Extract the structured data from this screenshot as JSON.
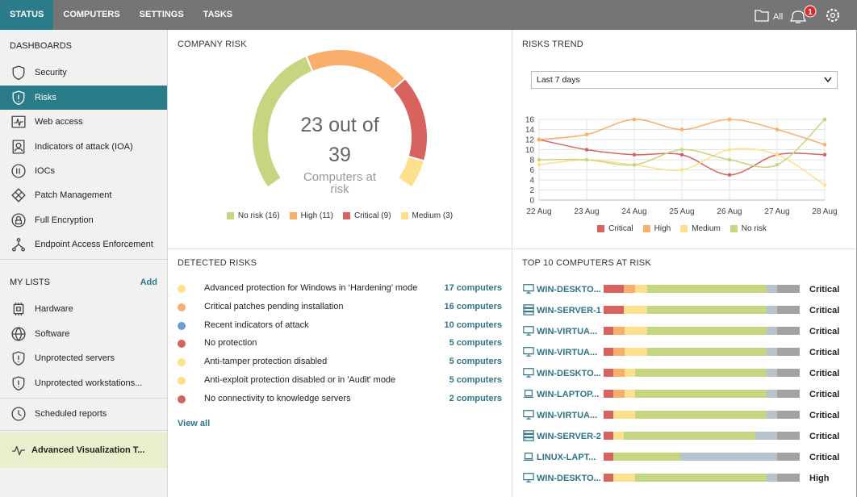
{
  "nav": {
    "tabs": [
      "STATUS",
      "COMPUTERS",
      "SETTINGS",
      "TASKS"
    ],
    "filter": "All",
    "notifications": 1
  },
  "sidebar": {
    "dashboards_title": "DASHBOARDS",
    "dashboards": [
      "Security",
      "Risks",
      "Web access",
      "Indicators of attack (IOA)",
      "IOCs",
      "Patch Management",
      "Full Encryption",
      "Endpoint Access Enforcement"
    ],
    "my_lists_title": "MY LISTS",
    "add": "Add",
    "my_lists": [
      "Hardware",
      "Software",
      "Unprotected servers",
      "Unprotected workstations..."
    ],
    "scheduled_reports": "Scheduled reports",
    "advanced_visualization": "Advanced Visualization T..."
  },
  "chart_data": [
    {
      "type": "donut",
      "title": "COMPANY RISK",
      "categories": [
        "No risk (16)",
        "High (11)",
        "Critical (9)",
        "Medium (3)"
      ],
      "values": [
        16,
        11,
        9,
        3
      ],
      "colors": [
        "#c5d580",
        "#f9ae6b",
        "#d8625d",
        "#fde08c"
      ],
      "center_value": 23,
      "center_text": "out of",
      "total": 39,
      "caption": "Computers at risk"
    },
    {
      "type": "line",
      "title": "RISKS TREND",
      "period": "Last 7 days",
      "x": [
        "22 Aug",
        "23 Aug",
        "24 Aug",
        "25 Aug",
        "26 Aug",
        "27 Aug",
        "28 Aug"
      ],
      "series": [
        {
          "name": "Critical",
          "color": "#d8625d",
          "values": [
            12,
            10,
            9,
            9,
            5,
            9,
            9
          ]
        },
        {
          "name": "High",
          "color": "#f9ae6b",
          "values": [
            12,
            13,
            16,
            14,
            16,
            14,
            11
          ]
        },
        {
          "name": "Medium",
          "color": "#fde08c",
          "values": [
            7,
            8,
            7,
            6,
            10,
            9,
            3
          ]
        },
        {
          "name": "No risk",
          "color": "#c5d580",
          "values": [
            8,
            8,
            7,
            10,
            8,
            7,
            16
          ]
        }
      ],
      "ylim": [
        0,
        16
      ],
      "yticks": [
        0,
        2,
        4,
        6,
        8,
        10,
        12,
        14,
        16
      ],
      "grid": true
    },
    {
      "type": "stacked_bar",
      "title": "TOP 10 COMPUTERS AT RISK",
      "categories": [
        "WIN-DESKTO...",
        "WIN-SERVER-1",
        "WIN-VIRTUA...",
        "WIN-VIRTUA...",
        "WIN-DESKTO...",
        "WIN-LAPTOP...",
        "WIN-VIRTUA...",
        "WIN-SERVER-2",
        "LINUX-LAPT...",
        "WIN-DESKTO..."
      ],
      "icons": [
        "desktop",
        "server",
        "desktop",
        "desktop",
        "desktop",
        "laptop",
        "desktop",
        "server",
        "laptop",
        "desktop"
      ],
      "status": [
        "Critical",
        "Critical",
        "Critical",
        "Critical",
        "Critical",
        "Critical",
        "Critical",
        "Critical",
        "Critical",
        "High"
      ],
      "series": [
        {
          "color": "#d8625d",
          "values": [
            25,
            25,
            12,
            12,
            12,
            12,
            12,
            12,
            12,
            12
          ]
        },
        {
          "color": "#f9ae6b",
          "values": [
            14,
            0,
            14,
            14,
            14,
            14,
            0,
            0,
            0,
            0
          ]
        },
        {
          "color": "#fde08c",
          "values": [
            15,
            29,
            28,
            28,
            13,
            13,
            27,
            13,
            0,
            27
          ]
        },
        {
          "color": "#c5d580",
          "values": [
            148,
            148,
            148,
            148,
            163,
            163,
            163,
            163,
            83,
            163
          ]
        },
        {
          "color": "#b8c4cd",
          "values": [
            13,
            13,
            13,
            13,
            13,
            13,
            13,
            27,
            120,
            13
          ]
        },
        {
          "color": "#a3a3a3",
          "values": [
            28,
            28,
            28,
            28,
            28,
            28,
            28,
            28,
            28,
            28
          ]
        }
      ]
    }
  ],
  "detected_risks": {
    "title": "DETECTED RISKS",
    "view_all": "View all",
    "items": [
      {
        "label": "Advanced protection for Windows in ‘Hardening’ mode",
        "count": "17 computers",
        "color": "#fde08c"
      },
      {
        "label": "Critical patches pending installation",
        "count": "16 computers",
        "color": "#f9ae6b"
      },
      {
        "label": "Recent indicators of attack",
        "count": "10 computers",
        "color": "#6d9bd2"
      },
      {
        "label": "No protection",
        "count": "5 computers",
        "color": "#d8625d"
      },
      {
        "label": "Anti-tamper protection disabled",
        "count": "5 computers",
        "color": "#fde08c"
      },
      {
        "label": "Anti-exploit protection disabled or in 'Audit' mode",
        "count": "5 computers",
        "color": "#fde08c"
      },
      {
        "label": "No connectivity to knowledge servers",
        "count": "2 computers",
        "color": "#d8625d"
      }
    ]
  }
}
